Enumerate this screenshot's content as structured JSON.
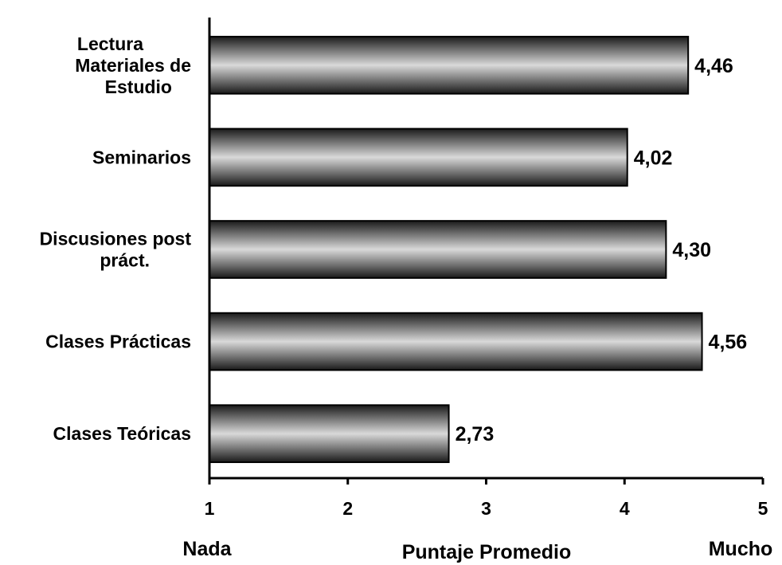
{
  "chart_data": {
    "type": "bar",
    "orientation": "horizontal",
    "categories": [
      [
        "Lectura",
        "Materiales de",
        "Estudio"
      ],
      [
        "Seminarios"
      ],
      [
        "Discusiones post",
        "práct."
      ],
      [
        "Clases Prácticas"
      ],
      [
        "Clases Teóricas"
      ]
    ],
    "values": [
      4.46,
      4.02,
      4.3,
      4.56,
      2.73
    ],
    "value_labels": [
      "4,46",
      "4,02",
      "4,30",
      "4,56",
      "2,73"
    ],
    "xlim": [
      1,
      5
    ],
    "xticks": [
      1,
      2,
      3,
      4,
      5
    ],
    "xtick_labels": [
      "1",
      "2",
      "3",
      "4",
      "5"
    ],
    "xlabel": "Puntaje Promedio",
    "x_min_label": "Nada",
    "x_max_label": "Mucho",
    "bar_colors": {
      "dark": "#1a1a1a",
      "light": "#d9d9d9"
    }
  }
}
